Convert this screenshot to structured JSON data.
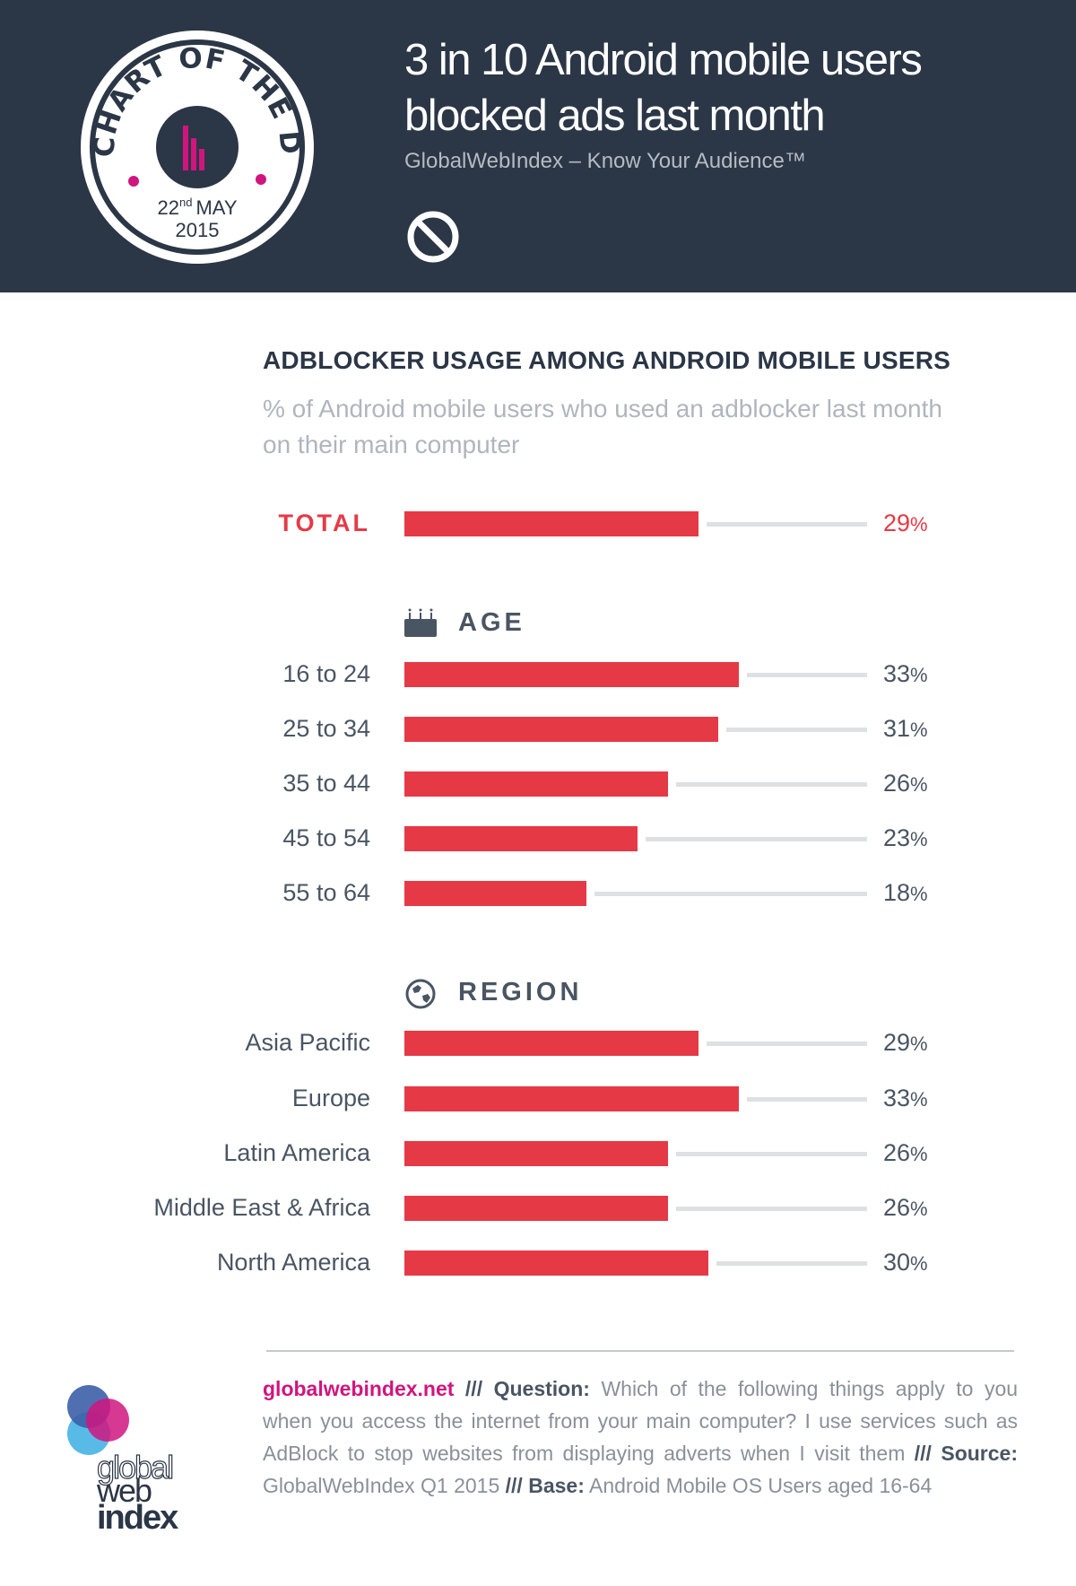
{
  "header": {
    "badge": {
      "text": "CHART OF THE DAY",
      "day": "22",
      "day_suffix": "nd",
      "month": "MAY",
      "year": "2015"
    },
    "title_line1": "3 in 10 Android mobile users",
    "title_line2": "blocked ads last month",
    "subtitle": "GlobalWebIndex – Know Your Audience™",
    "icon": "block-icon"
  },
  "chart_data": {
    "type": "bar",
    "orientation": "horizontal",
    "title": "ADBLOCKER USAGE AMONG ANDROID MOBILE USERS",
    "subtitle": "% of Android mobile users who used an adblocker last month on their main computer",
    "xlim": [
      0,
      45
    ],
    "unit": "%",
    "total": {
      "label": "TOTAL",
      "value": 29
    },
    "groups": [
      {
        "name": "AGE",
        "icon": "birthday-cake-icon",
        "categories": [
          "16 to 24",
          "25 to 34",
          "35 to 44",
          "45 to 54",
          "55 to 64"
        ],
        "values": [
          33,
          31,
          26,
          23,
          18
        ]
      },
      {
        "name": "REGION",
        "icon": "globe-icon",
        "categories": [
          "Asia Pacific",
          "Europe",
          "Latin America",
          "Middle East & Africa",
          "North America"
        ],
        "values": [
          29,
          33,
          26,
          26,
          30
        ]
      }
    ]
  },
  "colors": {
    "bar": "#e63946",
    "track": "#dde1e4",
    "header": "#2b3646",
    "accent": "#d0157f"
  },
  "footer": {
    "link": "globalwebindex.net",
    "sep": "///",
    "q_label": "Question:",
    "question": "Which of the following things apply to you when you access the internet from your main computer? I use services such as AdBlock to stop websites from displaying adverts when I visit them",
    "src_label": "Source:",
    "source": "GlobalWebIndex Q1 2015",
    "base_label": "Base:",
    "base": "Android Mobile OS Users aged 16-64",
    "logo": {
      "l1": "global",
      "l2": "web",
      "l3": "index"
    }
  }
}
